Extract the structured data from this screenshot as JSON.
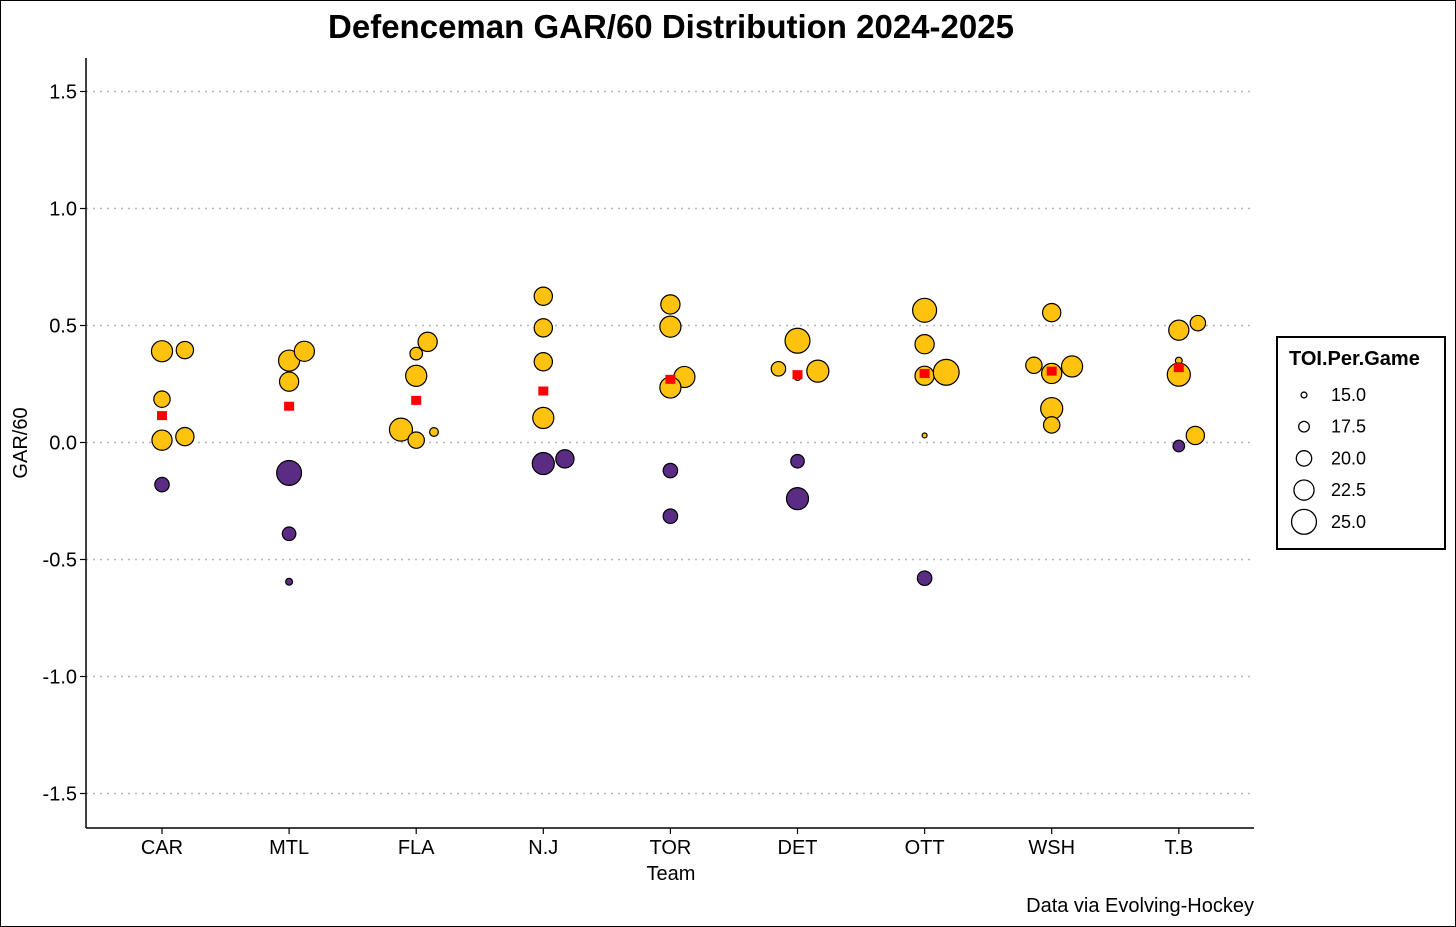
{
  "chart_data": {
    "type": "scatter",
    "title": "Defenceman GAR/60 Distribution 2024-2025",
    "xlabel": "Team",
    "ylabel": "GAR/60",
    "caption": "Data via Evolving-Hockey",
    "categories": [
      "CAR",
      "MTL",
      "FLA",
      "N.J",
      "TOR",
      "DET",
      "OTT",
      "WSH",
      "T.B"
    ],
    "ylim": [
      -1.65,
      1.65
    ],
    "yticks": [
      1.5,
      1.0,
      0.5,
      0.0,
      -0.5,
      -1.0,
      -1.5
    ],
    "ytick_labels": [
      "1.5",
      "1.0",
      "0.5",
      "0.0",
      "-0.5",
      "-1.0",
      "-1.5"
    ],
    "grid": "horizontal dotted",
    "colors": {
      "positive": "#FFC20E",
      "negative": "#5B2C83",
      "mean": "#FF0000",
      "outline": "#000000"
    },
    "legend": {
      "title": "TOI.Per.Game",
      "placement": "right",
      "sizes": [
        15.0,
        17.5,
        20.0,
        22.5,
        25.0
      ],
      "labels": [
        "15.0",
        "17.5",
        "20.0",
        "22.5",
        "25.0"
      ]
    },
    "team_means": [
      0.115,
      0.155,
      0.18,
      0.22,
      0.27,
      0.29,
      0.295,
      0.305,
      0.32
    ],
    "points": [
      {
        "team": "CAR",
        "jitter": 0,
        "gar60": 0.39,
        "toi": 23.0
      },
      {
        "team": "CAR",
        "jitter": 0.18,
        "gar60": 0.395,
        "toi": 21.0
      },
      {
        "team": "CAR",
        "jitter": 0,
        "gar60": 0.185,
        "toi": 20.5
      },
      {
        "team": "CAR",
        "jitter": 0,
        "gar60": 0.01,
        "toi": 22.5
      },
      {
        "team": "CAR",
        "jitter": 0.18,
        "gar60": 0.025,
        "toi": 21.5
      },
      {
        "team": "CAR",
        "jitter": 0,
        "gar60": -0.18,
        "toi": 19.5
      },
      {
        "team": "MTL",
        "jitter": 0,
        "gar60": 0.35,
        "toi": 23.0
      },
      {
        "team": "MTL",
        "jitter": 0.12,
        "gar60": 0.39,
        "toi": 22.5
      },
      {
        "team": "MTL",
        "jitter": 0,
        "gar60": 0.26,
        "toi": 22.0
      },
      {
        "team": "MTL",
        "jitter": 0,
        "gar60": -0.13,
        "toi": 25.0
      },
      {
        "team": "MTL",
        "jitter": 0,
        "gar60": -0.39,
        "toi": 19.0
      },
      {
        "team": "MTL",
        "jitter": 0,
        "gar60": -0.595,
        "toi": 15.5
      },
      {
        "team": "FLA",
        "jitter": 0.09,
        "gar60": 0.43,
        "toi": 22.0
      },
      {
        "team": "FLA",
        "jitter": 0,
        "gar60": 0.38,
        "toi": 18.5
      },
      {
        "team": "FLA",
        "jitter": 0,
        "gar60": 0.285,
        "toi": 23.0
      },
      {
        "team": "FLA",
        "jitter": -0.12,
        "gar60": 0.055,
        "toi": 24.0
      },
      {
        "team": "FLA",
        "jitter": 0,
        "gar60": 0.01,
        "toi": 20.5
      },
      {
        "team": "FLA",
        "jitter": 0.14,
        "gar60": 0.045,
        "toi": 16.5
      },
      {
        "team": "N.J",
        "jitter": 0,
        "gar60": 0.625,
        "toi": 21.5
      },
      {
        "team": "N.J",
        "jitter": 0,
        "gar60": 0.49,
        "toi": 21.5
      },
      {
        "team": "N.J",
        "jitter": 0,
        "gar60": 0.345,
        "toi": 21.5
      },
      {
        "team": "N.J",
        "jitter": 0,
        "gar60": 0.105,
        "toi": 23.0
      },
      {
        "team": "N.J",
        "jitter": 0,
        "gar60": -0.09,
        "toi": 23.5
      },
      {
        "team": "N.J",
        "jitter": 0.17,
        "gar60": -0.07,
        "toi": 21.5
      },
      {
        "team": "TOR",
        "jitter": 0,
        "gar60": 0.59,
        "toi": 22.0
      },
      {
        "team": "TOR",
        "jitter": 0,
        "gar60": 0.495,
        "toi": 23.0
      },
      {
        "team": "TOR",
        "jitter": 0.11,
        "gar60": 0.28,
        "toi": 23.0
      },
      {
        "team": "TOR",
        "jitter": 0,
        "gar60": 0.235,
        "toi": 23.0
      },
      {
        "team": "TOR",
        "jitter": 0,
        "gar60": -0.12,
        "toi": 19.5
      },
      {
        "team": "TOR",
        "jitter": 0,
        "gar60": -0.315,
        "toi": 19.5
      },
      {
        "team": "DET",
        "jitter": 0,
        "gar60": 0.435,
        "toi": 25.0
      },
      {
        "team": "DET",
        "jitter": -0.15,
        "gar60": 0.315,
        "toi": 19.5
      },
      {
        "team": "DET",
        "jitter": 0.16,
        "gar60": 0.305,
        "toi": 23.5
      },
      {
        "team": "DET",
        "jitter": 0,
        "gar60": 0.28,
        "toi": 15.5
      },
      {
        "team": "DET",
        "jitter": 0,
        "gar60": -0.08,
        "toi": 19.0
      },
      {
        "team": "DET",
        "jitter": 0,
        "gar60": -0.24,
        "toi": 23.5
      },
      {
        "team": "OTT",
        "jitter": 0,
        "gar60": 0.565,
        "toi": 24.5
      },
      {
        "team": "OTT",
        "jitter": 0,
        "gar60": 0.42,
        "toi": 22.0
      },
      {
        "team": "OTT",
        "jitter": 0,
        "gar60": 0.285,
        "toi": 22.0
      },
      {
        "team": "OTT",
        "jitter": 0.17,
        "gar60": 0.3,
        "toi": 25.5
      },
      {
        "team": "OTT",
        "jitter": 0,
        "gar60": 0.03,
        "toi": 14.5
      },
      {
        "team": "OTT",
        "jitter": 0,
        "gar60": -0.58,
        "toi": 19.5
      },
      {
        "team": "WSH",
        "jitter": 0,
        "gar60": 0.555,
        "toi": 21.5
      },
      {
        "team": "WSH",
        "jitter": -0.14,
        "gar60": 0.33,
        "toi": 20.5
      },
      {
        "team": "WSH",
        "jitter": 0.16,
        "gar60": 0.325,
        "toi": 23.0
      },
      {
        "team": "WSH",
        "jitter": 0,
        "gar60": 0.295,
        "toi": 22.5
      },
      {
        "team": "WSH",
        "jitter": 0,
        "gar60": 0.145,
        "toi": 23.5
      },
      {
        "team": "WSH",
        "jitter": 0,
        "gar60": 0.075,
        "toi": 20.5
      },
      {
        "team": "T.B",
        "jitter": 0,
        "gar60": 0.48,
        "toi": 22.5
      },
      {
        "team": "T.B",
        "jitter": 0.15,
        "gar60": 0.51,
        "toi": 20.0
      },
      {
        "team": "T.B",
        "jitter": 0,
        "gar60": 0.35,
        "toi": 15.5
      },
      {
        "team": "T.B",
        "jitter": 0,
        "gar60": 0.29,
        "toi": 24.0
      },
      {
        "team": "T.B",
        "jitter": 0.13,
        "gar60": 0.03,
        "toi": 21.5
      },
      {
        "team": "T.B",
        "jitter": 0,
        "gar60": -0.015,
        "toi": 18.0
      }
    ]
  }
}
